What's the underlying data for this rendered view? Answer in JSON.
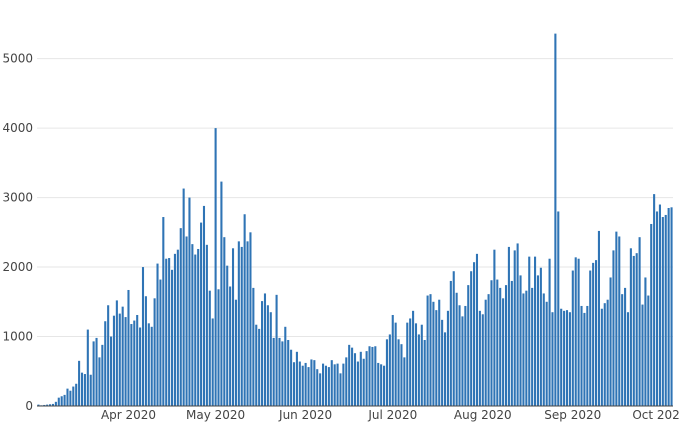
{
  "chart_data": {
    "type": "bar",
    "title": "",
    "xlabel": "",
    "ylabel": "",
    "start_date": "2020-03-01",
    "end_date": "2020-10-15",
    "ylim": [
      0,
      5700
    ],
    "y_ticks": [
      0,
      1000,
      2000,
      3000,
      4000,
      5000
    ],
    "y_tick_labels": [
      "0",
      "1000",
      "2000",
      "3000",
      "4000",
      "5000"
    ],
    "x_ticks": [
      {
        "label": "Apr 2020",
        "date": "2020-04-01"
      },
      {
        "label": "May 2020",
        "date": "2020-05-01"
      },
      {
        "label": "Jun 2020",
        "date": "2020-06-01"
      },
      {
        "label": "Jul 2020",
        "date": "2020-07-01"
      },
      {
        "label": "Aug 2020",
        "date": "2020-08-01"
      },
      {
        "label": "Sep 2020",
        "date": "2020-09-01"
      },
      {
        "label": "Oct 2020",
        "date": "2020-10-01"
      }
    ],
    "grid": true,
    "legend": "none",
    "bar_color": "#2f74b5",
    "values": [
      20,
      10,
      15,
      20,
      25,
      30,
      60,
      120,
      140,
      160,
      250,
      220,
      280,
      320,
      650,
      480,
      460,
      1100,
      450,
      930,
      980,
      700,
      880,
      1220,
      1450,
      1000,
      1300,
      1520,
      1330,
      1430,
      1280,
      1670,
      1180,
      1230,
      1310,
      1130,
      2000,
      1580,
      1190,
      1140,
      1550,
      2050,
      1820,
      2720,
      2120,
      2130,
      1960,
      2190,
      2250,
      2560,
      3130,
      2440,
      3000,
      2330,
      2180,
      2260,
      2640,
      2880,
      2320,
      1660,
      1260,
      4000,
      1680,
      3230,
      2430,
      2020,
      1720,
      2270,
      1530,
      2370,
      2290,
      2760,
      2370,
      2500,
      1700,
      1170,
      1110,
      1510,
      1620,
      1450,
      1350,
      980,
      1600,
      980,
      930,
      1140,
      950,
      810,
      630,
      780,
      640,
      580,
      620,
      560,
      670,
      660,
      530,
      470,
      610,
      580,
      560,
      660,
      600,
      610,
      470,
      610,
      700,
      880,
      840,
      760,
      640,
      780,
      680,
      790,
      860,
      850,
      860,
      620,
      600,
      580,
      960,
      1030,
      1310,
      1200,
      960,
      890,
      700,
      1200,
      1260,
      1370,
      1190,
      1030,
      1170,
      950,
      1590,
      1610,
      1500,
      1380,
      1530,
      1240,
      1060,
      1370,
      1800,
      1940,
      1630,
      1450,
      1290,
      1440,
      1740,
      1940,
      2070,
      2190,
      1370,
      1320,
      1530,
      1610,
      1810,
      2250,
      1820,
      1700,
      1550,
      1740,
      2290,
      1800,
      2240,
      2340,
      1880,
      1620,
      1660,
      2150,
      1700,
      2150,
      1880,
      1990,
      1620,
      1500,
      2120,
      1350,
      5360,
      2800,
      1400,
      1370,
      1380,
      1350,
      1950,
      2140,
      2120,
      1440,
      1340,
      1440,
      1950,
      2060,
      2100,
      2520,
      1400,
      1480,
      1530,
      1850,
      2240,
      2510,
      2440,
      1610,
      1700,
      1350,
      2270,
      2160,
      2200,
      2430,
      1460,
      1850,
      1590,
      2620,
      3050,
      2800,
      2900,
      2720,
      2750,
      2850,
      2860
    ]
  }
}
